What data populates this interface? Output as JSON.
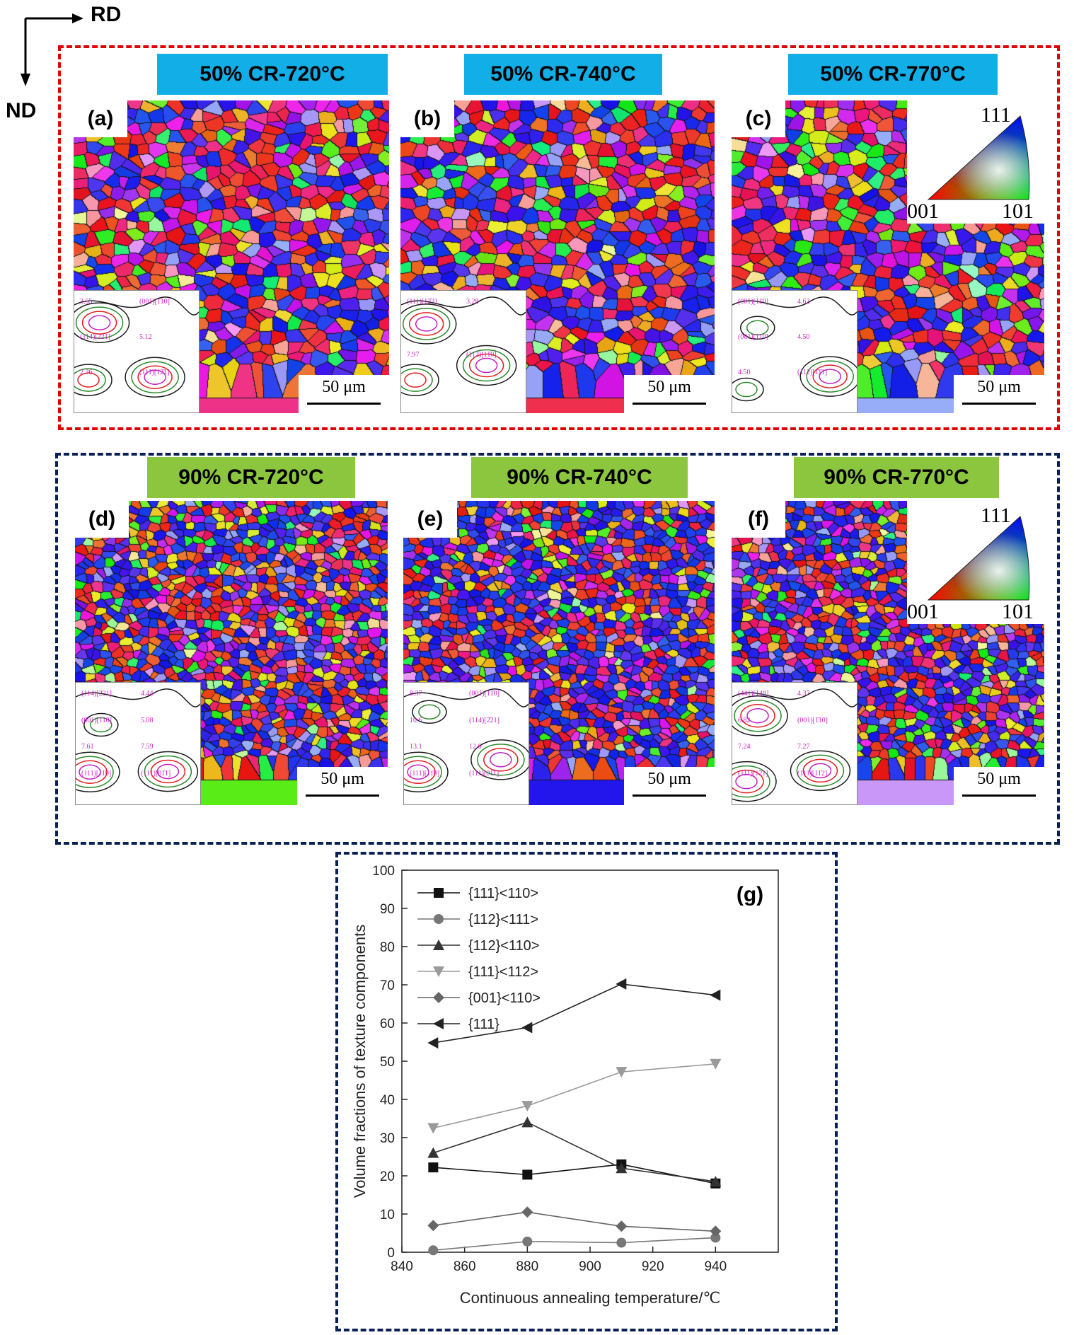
{
  "axes_legend": {
    "rd": "RD",
    "nd": "ND"
  },
  "colors": {
    "box_top": "#e00000",
    "box_bottom": "#0a1f55",
    "tag_top": "#12aee8",
    "tag_bottom": "#8cc63f",
    "odf_annotation": "#d020c8"
  },
  "panels": [
    {
      "letter": "(a)",
      "title": "50% CR-720°C",
      "scale": "50 μm",
      "seed": 11,
      "blue_bias": 0.2,
      "grain": "coarse",
      "ipf": false,
      "odf_labels": [
        "3.55",
        "(001)[1̄10]",
        "(114)[2̄21]",
        "5.12",
        "2.36",
        "(111)[12̄1]"
      ]
    },
    {
      "letter": "(b)",
      "title": "50% CR-740°C",
      "scale": "50 μm",
      "seed": 23,
      "blue_bias": 0.35,
      "grain": "coarse",
      "ipf": false,
      "odf_labels": [
        "(111)[12̄3]",
        "3.28",
        "7.97",
        "(112)[11̄0]"
      ]
    },
    {
      "letter": "(c)",
      "title": "50% CR-770°C",
      "scale": "50 μm",
      "seed": 37,
      "blue_bias": 0.3,
      "grain": "coarse",
      "ipf": true,
      "ipf_labels": [
        "111",
        "001",
        "101"
      ],
      "odf_labels": [
        "(001)[11̄0]",
        "4.62",
        "(001)[1̄10]",
        "4.50",
        "4.50",
        "(112)[1̄1̄1]"
      ]
    },
    {
      "letter": "(d)",
      "title": "90% CR-720°C",
      "scale": "50 μm",
      "seed": 41,
      "blue_bias": 0.45,
      "grain": "fine",
      "ipf": false,
      "odf_labels": [
        "(114)[2̄21]",
        "4.44",
        "(001)[1̄10]",
        "5.08",
        "7.61",
        "7.59",
        "(111)[11̄0]",
        "(111)[01̄1]"
      ]
    },
    {
      "letter": "(e)",
      "title": "90% CR-740°C",
      "scale": "50 μm",
      "seed": 53,
      "blue_bias": 0.55,
      "grain": "fine",
      "ipf": false,
      "odf_labels": [
        "8.37",
        "(001)[11̄0]",
        "10.6",
        "(114)[2̄21]",
        "13.1",
        "12.6",
        "(111)[11̄0]",
        "(111)[01̄1]"
      ]
    },
    {
      "letter": "(f)",
      "title": "90% CR-770°C",
      "scale": "50 μm",
      "seed": 67,
      "blue_bias": 0.5,
      "grain": "fine",
      "ipf": true,
      "ipf_labels": [
        "111",
        "001",
        "101"
      ],
      "odf_labels": [
        "(441)[148]",
        "4.37",
        "6.82",
        "(001)[1̄10]",
        "7.24",
        "7.27",
        "(111)[12̄1]",
        "(111)[11̄2]"
      ]
    }
  ],
  "chart_data": {
    "type": "line",
    "panel_label": "(g)",
    "xlabel": "Continuous annealing temperature/℃",
    "ylabel": "Volume fractions of texture components",
    "xlim": [
      840,
      960
    ],
    "ylim": [
      0,
      100
    ],
    "xticks": [
      840,
      860,
      880,
      900,
      920,
      940
    ],
    "yticks": [
      0,
      10,
      20,
      30,
      40,
      50,
      60,
      70,
      80,
      90,
      100
    ],
    "x": [
      850,
      880,
      910,
      940
    ],
    "legend_position": "top-left",
    "series": [
      {
        "name": "{111}<110>",
        "marker": "square",
        "color": "#111111",
        "values": [
          22.2,
          20.3,
          23.0,
          18.0
        ]
      },
      {
        "name": "{112}<111>",
        "marker": "circle",
        "color": "#777777",
        "values": [
          0.5,
          2.8,
          2.5,
          3.8
        ]
      },
      {
        "name": "{112}<110>",
        "marker": "triangle-up",
        "color": "#333333",
        "values": [
          26.0,
          34.0,
          22.0,
          18.5
        ]
      },
      {
        "name": "{111}<112>",
        "marker": "triangle-down",
        "color": "#9a9a9a",
        "values": [
          32.5,
          38.3,
          47.2,
          49.3
        ]
      },
      {
        "name": "{001}<110>",
        "marker": "diamond",
        "color": "#666666",
        "values": [
          7.0,
          10.5,
          6.8,
          5.5
        ]
      },
      {
        "name": "{111}",
        "marker": "triangle-left",
        "color": "#222222",
        "values": [
          54.8,
          58.8,
          70.2,
          67.3
        ]
      }
    ]
  }
}
